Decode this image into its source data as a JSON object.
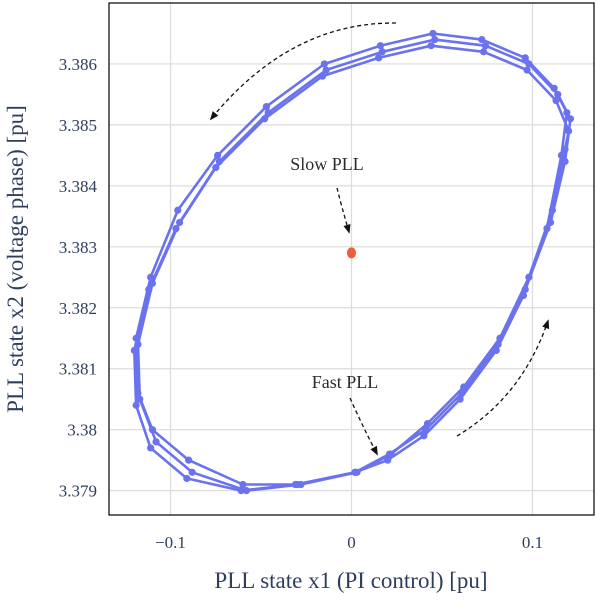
{
  "chart_data": {
    "type": "scatter",
    "xlabel": "PLL state x1 (PI control) [pu]",
    "ylabel": "PLL state x2 (voltage phase) [pu]",
    "xlim": [
      -0.134,
      0.134
    ],
    "ylim": [
      3.3786,
      3.387
    ],
    "x_ticks": [
      -0.1,
      0,
      0.1
    ],
    "x_tick_labels": [
      "−0.1",
      "0",
      "0.1"
    ],
    "y_ticks": [
      3.379,
      3.38,
      3.381,
      3.382,
      3.383,
      3.384,
      3.385,
      3.386
    ],
    "y_tick_labels": [
      "3.379",
      "3.38",
      "3.381",
      "3.382",
      "3.383",
      "3.384",
      "3.385",
      "3.386"
    ],
    "grid": true,
    "colors": {
      "fast_series": "#6a72ee",
      "slow_point": "#ef5b3c",
      "grid": "#dcdcdc",
      "annotation": "#111111"
    },
    "series": [
      {
        "style": "line-markers",
        "values": [
          [
            0.002,
            3.3793
          ],
          [
            0.02,
            3.3795
          ],
          [
            0.04,
            3.3799
          ],
          [
            0.06,
            3.3805
          ],
          [
            0.08,
            3.3813
          ],
          [
            0.095,
            3.3822
          ],
          [
            0.108,
            3.3833
          ],
          [
            0.116,
            3.3845
          ],
          [
            0.119,
            3.3852
          ],
          [
            0.112,
            3.3856
          ],
          [
            0.096,
            3.3861
          ],
          [
            0.072,
            3.3864
          ],
          [
            0.045,
            3.3865
          ],
          [
            0.016,
            3.3863
          ],
          [
            -0.015,
            3.386
          ],
          [
            -0.047,
            3.3853
          ],
          [
            -0.074,
            3.3845
          ],
          [
            -0.096,
            3.3836
          ],
          [
            -0.111,
            3.3825
          ],
          [
            -0.119,
            3.3815
          ],
          [
            -0.118,
            3.3806
          ],
          [
            -0.11,
            3.38
          ],
          [
            -0.09,
            3.3795
          ],
          [
            -0.06,
            3.3791
          ],
          [
            -0.03,
            3.3791
          ],
          [
            0.002,
            3.3793
          ],
          [
            0.021,
            3.3796
          ],
          [
            0.041,
            3.38
          ],
          [
            0.061,
            3.3806
          ],
          [
            0.081,
            3.3814
          ],
          [
            0.096,
            3.3823
          ],
          [
            0.11,
            3.3834
          ],
          [
            0.118,
            3.3844
          ],
          [
            0.121,
            3.3851
          ],
          [
            0.114,
            3.3855
          ],
          [
            0.098,
            3.386
          ],
          [
            0.074,
            3.3863
          ],
          [
            0.046,
            3.3864
          ],
          [
            0.017,
            3.3862
          ],
          [
            -0.014,
            3.3859
          ],
          [
            -0.046,
            3.3852
          ],
          [
            -0.073,
            3.3844
          ],
          [
            -0.095,
            3.3834
          ],
          [
            -0.11,
            3.3824
          ],
          [
            -0.118,
            3.3814
          ],
          [
            -0.117,
            3.3805
          ],
          [
            -0.108,
            3.3798
          ],
          [
            -0.088,
            3.3793
          ],
          [
            -0.058,
            3.379
          ],
          [
            -0.028,
            3.3791
          ],
          [
            0.003,
            3.3793
          ],
          [
            0.022,
            3.3796
          ],
          [
            0.042,
            3.3801
          ],
          [
            0.062,
            3.3807
          ],
          [
            0.082,
            3.3815
          ],
          [
            0.098,
            3.3825
          ],
          [
            0.111,
            3.3836
          ],
          [
            0.118,
            3.3846
          ],
          [
            0.12,
            3.3849
          ],
          [
            0.113,
            3.3854
          ],
          [
            0.097,
            3.3859
          ],
          [
            0.073,
            3.3862
          ],
          [
            0.044,
            3.3863
          ],
          [
            0.015,
            3.3861
          ],
          [
            -0.016,
            3.3858
          ],
          [
            -0.048,
            3.3851
          ],
          [
            -0.075,
            3.3843
          ],
          [
            -0.097,
            3.3833
          ],
          [
            -0.112,
            3.3823
          ],
          [
            -0.12,
            3.3813
          ],
          [
            -0.119,
            3.3804
          ],
          [
            -0.111,
            3.3797
          ],
          [
            -0.091,
            3.3792
          ],
          [
            -0.061,
            3.379
          ],
          [
            -0.031,
            3.3791
          ],
          [
            0.002,
            3.3793
          ]
        ]
      },
      {
        "style": "point",
        "values": [
          [
            0.0,
            3.3829
          ]
        ]
      }
    ],
    "annotations": [
      {
        "text": "Slow PLL"
      },
      {
        "text": "Fast PLL"
      }
    ]
  }
}
